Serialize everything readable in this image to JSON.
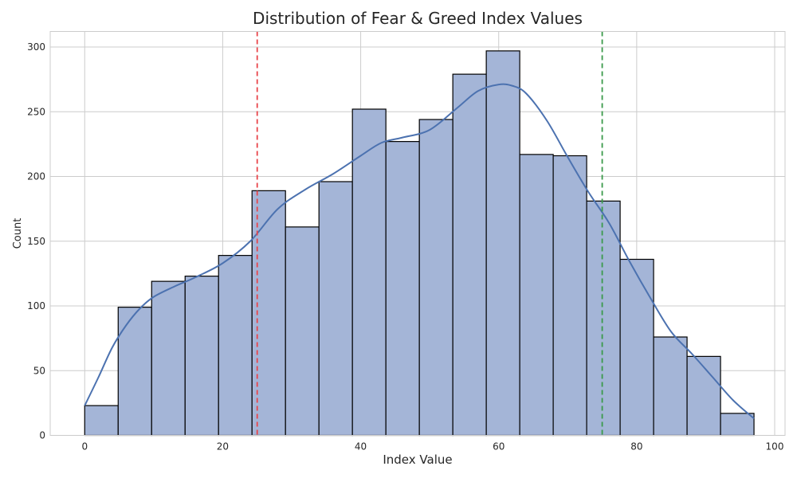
{
  "chart_data": {
    "type": "bar",
    "title": "Distribution of Fear & Greed Index Values",
    "xlabel": "Index Value",
    "ylabel": "Count",
    "xlim": [
      -5,
      101.5
    ],
    "ylim": [
      0,
      312
    ],
    "x_ticks": [
      0,
      20,
      40,
      60,
      80,
      100
    ],
    "y_ticks": [
      0,
      50,
      100,
      150,
      200,
      250,
      300
    ],
    "grid": true,
    "bar_color": "#a4b5d7",
    "kde_color": "#4c72b0",
    "bins": [
      {
        "x0": 0.0,
        "x1": 4.85,
        "value": 23
      },
      {
        "x0": 4.85,
        "x1": 9.7,
        "value": 99
      },
      {
        "x0": 9.7,
        "x1": 14.55,
        "value": 119
      },
      {
        "x0": 14.55,
        "x1": 19.4,
        "value": 123
      },
      {
        "x0": 19.4,
        "x1": 24.25,
        "value": 139
      },
      {
        "x0": 24.25,
        "x1": 29.1,
        "value": 189
      },
      {
        "x0": 29.1,
        "x1": 33.95,
        "value": 161
      },
      {
        "x0": 33.95,
        "x1": 38.8,
        "value": 196
      },
      {
        "x0": 38.8,
        "x1": 43.65,
        "value": 252
      },
      {
        "x0": 43.65,
        "x1": 48.5,
        "value": 227
      },
      {
        "x0": 48.5,
        "x1": 53.35,
        "value": 244
      },
      {
        "x0": 53.35,
        "x1": 58.2,
        "value": 279
      },
      {
        "x0": 58.2,
        "x1": 63.05,
        "value": 297
      },
      {
        "x0": 63.05,
        "x1": 67.9,
        "value": 217
      },
      {
        "x0": 67.9,
        "x1": 72.75,
        "value": 216
      },
      {
        "x0": 72.75,
        "x1": 77.6,
        "value": 181
      },
      {
        "x0": 77.6,
        "x1": 82.45,
        "value": 136
      },
      {
        "x0": 82.45,
        "x1": 87.3,
        "value": 76
      },
      {
        "x0": 87.3,
        "x1": 92.15,
        "value": 61
      },
      {
        "x0": 92.15,
        "x1": 97.0,
        "value": 17
      }
    ],
    "kde": {
      "x": [
        0,
        2,
        4,
        6,
        8,
        10,
        13,
        16,
        20,
        24,
        28,
        32,
        36,
        40,
        43,
        46,
        50,
        54,
        57,
        60,
        62,
        64,
        67,
        70,
        73,
        76,
        79,
        82,
        85,
        88,
        91,
        94,
        97
      ],
      "y": [
        23,
        45,
        68,
        85,
        98,
        107,
        115,
        122,
        133,
        150,
        175,
        190,
        202,
        216,
        226,
        230,
        236,
        253,
        266,
        271,
        270,
        264,
        243,
        215,
        188,
        164,
        134,
        106,
        80,
        63,
        45,
        27,
        13
      ]
    },
    "reference_lines": [
      {
        "x": 25,
        "color": "#e8464b",
        "style": "dashed"
      },
      {
        "x": 75,
        "color": "#3a9a4a",
        "style": "dashed"
      }
    ]
  }
}
